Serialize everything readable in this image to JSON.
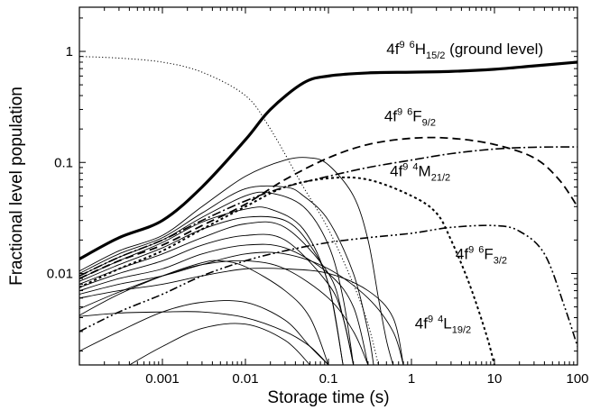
{
  "chart_data": {
    "type": "line",
    "xlabel": "Storage time (s)",
    "ylabel": "Fractional level population",
    "x_scale": "log",
    "y_scale": "log",
    "xlim": [
      0.0001,
      100
    ],
    "ylim": [
      0.0015,
      2.5
    ],
    "x_ticks": [
      {
        "value": 0.001,
        "label": "0.001"
      },
      {
        "value": 0.01,
        "label": "0.01"
      },
      {
        "value": 0.1,
        "label": "0.1"
      },
      {
        "value": 1,
        "label": "1"
      },
      {
        "value": 10,
        "label": "10"
      },
      {
        "value": 100,
        "label": "100"
      }
    ],
    "y_ticks": [
      {
        "value": 0.01,
        "label": "0.01"
      },
      {
        "value": 0.1,
        "label": "0.1"
      },
      {
        "value": 1,
        "label": "1"
      }
    ],
    "annotations": [
      {
        "id": "h15",
        "x": 0.5,
        "y": 0.95,
        "main": "4f",
        "sup1": "9",
        "sup2": "6",
        "term": "H",
        "sub": "15/2",
        "suffix": " (ground level)"
      },
      {
        "id": "f92",
        "x": 0.47,
        "y": 0.235,
        "main": "4f",
        "sup1": "9",
        "sup2": "6",
        "term": "F",
        "sub": "9/2",
        "suffix": ""
      },
      {
        "id": "m212",
        "x": 0.55,
        "y": 0.075,
        "main": "4f",
        "sup1": "9",
        "sup2": "4",
        "term": "M",
        "sub": "21/2",
        "suffix": ""
      },
      {
        "id": "f32",
        "x": 3.4,
        "y": 0.0135,
        "main": "4f",
        "sup1": "9",
        "sup2": "6",
        "term": "F",
        "sub": "3/2",
        "suffix": ""
      },
      {
        "id": "l192",
        "x": 1.1,
        "y": 0.0032,
        "main": "4f",
        "sup1": "9",
        "sup2": "4",
        "term": "L",
        "sub": "19/2",
        "suffix": ""
      }
    ],
    "series": [
      {
        "style": "thick",
        "points": [
          [
            0.0001,
            0.0135
          ],
          [
            0.0003,
            0.021
          ],
          [
            0.001,
            0.03
          ],
          [
            0.003,
            0.06
          ],
          [
            0.01,
            0.16
          ],
          [
            0.02,
            0.3
          ],
          [
            0.05,
            0.52
          ],
          [
            0.1,
            0.6
          ],
          [
            0.3,
            0.64
          ],
          [
            1,
            0.65
          ],
          [
            3,
            0.66
          ],
          [
            10,
            0.69
          ],
          [
            30,
            0.74
          ],
          [
            100,
            0.8
          ]
        ]
      },
      {
        "style": "dotted",
        "points": [
          [
            0.0001,
            0.9
          ],
          [
            0.0003,
            0.87
          ],
          [
            0.001,
            0.8
          ],
          [
            0.003,
            0.65
          ],
          [
            0.01,
            0.4
          ],
          [
            0.02,
            0.2
          ],
          [
            0.05,
            0.06
          ],
          [
            0.1,
            0.025
          ],
          [
            0.2,
            0.008
          ],
          [
            0.3,
            0.0035
          ],
          [
            0.4,
            0.0015
          ]
        ]
      },
      {
        "style": "dashed",
        "points": [
          [
            0.0001,
            0.009
          ],
          [
            0.0003,
            0.013
          ],
          [
            0.001,
            0.018
          ],
          [
            0.003,
            0.027
          ],
          [
            0.01,
            0.042
          ],
          [
            0.03,
            0.07
          ],
          [
            0.1,
            0.11
          ],
          [
            0.3,
            0.145
          ],
          [
            1,
            0.165
          ],
          [
            3,
            0.165
          ],
          [
            10,
            0.145
          ],
          [
            30,
            0.11
          ],
          [
            60,
            0.07
          ],
          [
            100,
            0.04
          ]
        ]
      },
      {
        "style": "dashdot",
        "points": [
          [
            0.0001,
            0.0095
          ],
          [
            0.0003,
            0.014
          ],
          [
            0.001,
            0.02
          ],
          [
            0.003,
            0.03
          ],
          [
            0.01,
            0.045
          ],
          [
            0.03,
            0.06
          ],
          [
            0.1,
            0.075
          ],
          [
            0.3,
            0.09
          ],
          [
            1,
            0.105
          ],
          [
            3,
            0.12
          ],
          [
            10,
            0.132
          ],
          [
            30,
            0.137
          ],
          [
            100,
            0.138
          ]
        ]
      },
      {
        "style": "dashdotdot",
        "points": [
          [
            0.0001,
            0.003
          ],
          [
            0.0003,
            0.0045
          ],
          [
            0.001,
            0.0065
          ],
          [
            0.003,
            0.0095
          ],
          [
            0.01,
            0.013
          ],
          [
            0.03,
            0.016
          ],
          [
            0.1,
            0.019
          ],
          [
            0.3,
            0.021
          ],
          [
            1,
            0.023
          ],
          [
            3,
            0.026
          ],
          [
            10,
            0.027
          ],
          [
            20,
            0.024
          ],
          [
            40,
            0.015
          ],
          [
            70,
            0.005
          ],
          [
            100,
            0.0022
          ]
        ]
      },
      {
        "style": "shortdash",
        "points": [
          [
            0.0001,
            0.0075
          ],
          [
            0.0003,
            0.011
          ],
          [
            0.001,
            0.016
          ],
          [
            0.003,
            0.025
          ],
          [
            0.01,
            0.04
          ],
          [
            0.03,
            0.06
          ],
          [
            0.1,
            0.072
          ],
          [
            0.3,
            0.07
          ],
          [
            1,
            0.05
          ],
          [
            2,
            0.035
          ],
          [
            3,
            0.02
          ],
          [
            5,
            0.008
          ],
          [
            8,
            0.0028
          ],
          [
            10,
            0.0015
          ]
        ]
      },
      {
        "style": "thin",
        "points": [
          [
            0.0001,
            0.0105
          ],
          [
            0.0003,
            0.016
          ],
          [
            0.001,
            0.022
          ],
          [
            0.003,
            0.04
          ],
          [
            0.01,
            0.075
          ],
          [
            0.03,
            0.105
          ],
          [
            0.06,
            0.11
          ],
          [
            0.1,
            0.095
          ],
          [
            0.2,
            0.05
          ],
          [
            0.3,
            0.02
          ],
          [
            0.4,
            0.006
          ],
          [
            0.5,
            0.0025
          ],
          [
            0.6,
            0.0015
          ]
        ]
      },
      {
        "style": "thin",
        "points": [
          [
            0.0001,
            0.01
          ],
          [
            0.0003,
            0.015
          ],
          [
            0.001,
            0.021
          ],
          [
            0.003,
            0.035
          ],
          [
            0.01,
            0.058
          ],
          [
            0.03,
            0.06
          ],
          [
            0.05,
            0.05
          ],
          [
            0.1,
            0.03
          ],
          [
            0.2,
            0.01
          ],
          [
            0.3,
            0.003
          ],
          [
            0.35,
            0.0015
          ]
        ]
      },
      {
        "style": "thin",
        "points": [
          [
            0.0001,
            0.0095
          ],
          [
            0.0003,
            0.014
          ],
          [
            0.001,
            0.02
          ],
          [
            0.003,
            0.032
          ],
          [
            0.01,
            0.05
          ],
          [
            0.02,
            0.053
          ],
          [
            0.05,
            0.04
          ],
          [
            0.1,
            0.018
          ],
          [
            0.15,
            0.006
          ],
          [
            0.2,
            0.0015
          ]
        ]
      },
      {
        "style": "thin",
        "points": [
          [
            0.0001,
            0.009
          ],
          [
            0.0003,
            0.013
          ],
          [
            0.001,
            0.019
          ],
          [
            0.003,
            0.029
          ],
          [
            0.01,
            0.038
          ],
          [
            0.02,
            0.038
          ],
          [
            0.05,
            0.025
          ],
          [
            0.1,
            0.008
          ],
          [
            0.15,
            0.0015
          ]
        ]
      },
      {
        "style": "thin",
        "points": [
          [
            0.0001,
            0.0085
          ],
          [
            0.0003,
            0.012
          ],
          [
            0.001,
            0.017
          ],
          [
            0.003,
            0.025
          ],
          [
            0.01,
            0.032
          ],
          [
            0.03,
            0.03
          ],
          [
            0.06,
            0.018
          ],
          [
            0.1,
            0.008
          ],
          [
            0.15,
            0.0015
          ]
        ]
      },
      {
        "style": "thin",
        "points": [
          [
            0.0001,
            0.008
          ],
          [
            0.0003,
            0.011
          ],
          [
            0.001,
            0.015
          ],
          [
            0.003,
            0.021
          ],
          [
            0.01,
            0.028
          ],
          [
            0.03,
            0.026
          ],
          [
            0.1,
            0.01
          ],
          [
            0.15,
            0.004
          ],
          [
            0.2,
            0.0015
          ]
        ]
      },
      {
        "style": "thin",
        "points": [
          [
            0.0001,
            0.0075
          ],
          [
            0.0003,
            0.01
          ],
          [
            0.001,
            0.013
          ],
          [
            0.003,
            0.018
          ],
          [
            0.01,
            0.022
          ],
          [
            0.03,
            0.02
          ],
          [
            0.1,
            0.008
          ],
          [
            0.15,
            0.004
          ],
          [
            0.2,
            0.0015
          ]
        ]
      },
      {
        "style": "thin",
        "points": [
          [
            0.0001,
            0.007
          ],
          [
            0.0003,
            0.009
          ],
          [
            0.001,
            0.011
          ],
          [
            0.003,
            0.015
          ],
          [
            0.01,
            0.018
          ],
          [
            0.03,
            0.017
          ],
          [
            0.1,
            0.01
          ],
          [
            0.2,
            0.005
          ],
          [
            0.3,
            0.0015
          ]
        ]
      },
      {
        "style": "thin",
        "points": [
          [
            0.0001,
            0.0065
          ],
          [
            0.0003,
            0.008
          ],
          [
            0.001,
            0.0095
          ],
          [
            0.003,
            0.012
          ],
          [
            0.01,
            0.015
          ],
          [
            0.03,
            0.015
          ],
          [
            0.1,
            0.011
          ],
          [
            0.3,
            0.006
          ],
          [
            0.6,
            0.003
          ],
          [
            0.8,
            0.0015
          ]
        ]
      },
      {
        "style": "thin",
        "points": [
          [
            0.0001,
            0.006
          ],
          [
            0.0003,
            0.007
          ],
          [
            0.001,
            0.008
          ],
          [
            0.003,
            0.0095
          ],
          [
            0.01,
            0.011
          ],
          [
            0.03,
            0.011
          ],
          [
            0.1,
            0.01
          ],
          [
            0.3,
            0.007
          ],
          [
            0.6,
            0.004
          ],
          [
            0.8,
            0.0015
          ]
        ]
      },
      {
        "style": "thin",
        "points": [
          [
            0.0001,
            0.0048
          ],
          [
            0.0003,
            0.0068
          ],
          [
            0.001,
            0.0095
          ],
          [
            0.003,
            0.012
          ],
          [
            0.01,
            0.013
          ],
          [
            0.03,
            0.011
          ],
          [
            0.1,
            0.006
          ],
          [
            0.2,
            0.003
          ],
          [
            0.3,
            0.0015
          ]
        ]
      },
      {
        "style": "thin",
        "points": [
          [
            0.0001,
            0.0042
          ],
          [
            0.0003,
            0.0065
          ],
          [
            0.001,
            0.0095
          ],
          [
            0.003,
            0.0125
          ],
          [
            0.005,
            0.013
          ],
          [
            0.01,
            0.0115
          ],
          [
            0.03,
            0.007
          ],
          [
            0.06,
            0.004
          ],
          [
            0.1,
            0.0015
          ]
        ]
      },
      {
        "style": "thin",
        "points": [
          [
            0.0001,
            0.0041
          ],
          [
            0.0003,
            0.0044
          ],
          [
            0.001,
            0.0045
          ],
          [
            0.003,
            0.0045
          ],
          [
            0.01,
            0.004
          ],
          [
            0.03,
            0.003
          ],
          [
            0.06,
            0.0022
          ],
          [
            0.1,
            0.0015
          ]
        ]
      },
      {
        "style": "thin",
        "points": [
          [
            0.0001,
            0.002
          ],
          [
            0.0003,
            0.003
          ],
          [
            0.001,
            0.0045
          ],
          [
            0.003,
            0.0055
          ],
          [
            0.01,
            0.0055
          ],
          [
            0.03,
            0.0038
          ],
          [
            0.06,
            0.0022
          ],
          [
            0.1,
            0.0015
          ]
        ]
      },
      {
        "style": "thin",
        "points": [
          [
            0.0004,
            0.0015
          ],
          [
            0.001,
            0.0022
          ],
          [
            0.003,
            0.0032
          ],
          [
            0.01,
            0.0035
          ],
          [
            0.03,
            0.0025
          ],
          [
            0.06,
            0.0015
          ]
        ]
      }
    ]
  }
}
